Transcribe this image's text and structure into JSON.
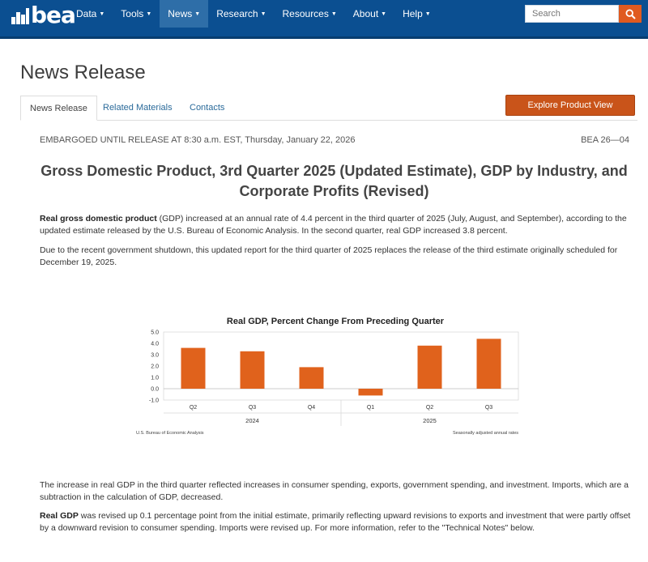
{
  "nav": {
    "logo_text": "bea",
    "items": [
      {
        "label": "Data",
        "active": false
      },
      {
        "label": "Tools",
        "active": false
      },
      {
        "label": "News",
        "active": true
      },
      {
        "label": "Research",
        "active": false
      },
      {
        "label": "Resources",
        "active": false
      },
      {
        "label": "About",
        "active": false
      },
      {
        "label": "Help",
        "active": false
      }
    ],
    "search_placeholder": "Search",
    "search_icon": "search-icon",
    "colors": {
      "bar": "#0b4f91",
      "active": "#2e6ea8",
      "search_button": "#e05a1f"
    }
  },
  "page": {
    "title": "News Release",
    "tabs": [
      "News Release",
      "Related Materials",
      "Contacts"
    ],
    "explore_button": "Explore Product View",
    "embargo": "EMBARGOED UNTIL RELEASE AT 8:30 a.m. EST, Thursday, January 22, 2026",
    "release_number": "BEA 26—04",
    "headline": "Gross Domestic Product, 3rd Quarter 2025 (Updated Estimate), GDP by Industry, and Corporate Profits (Revised)"
  },
  "paragraphs": {
    "p1_bold": "Real gross domestic product",
    "p1_rest": " (GDP) increased at an annual rate of 4.4 percent in the third quarter of 2025 (July, August, and September), according to the updated estimate released by the U.S. Bureau of Economic Analysis. In the second quarter, real GDP increased 3.8 percent.",
    "p2": "Due to the recent government shutdown, this updated report for the third quarter of 2025 replaces the release of the third estimate originally scheduled for December 19, 2025.",
    "p3": "The increase in real GDP in the third quarter reflected increases in consumer spending, exports, government spending, and investment. Imports, which are a subtraction in the calculation of GDP, decreased.",
    "p4_bold": "Real GDP",
    "p4_rest": " was revised up 0.1 percentage point from the initial estimate, primarily reflecting upward revisions to exports and investment that were partly offset by a downward revision to consumer spending. Imports were revised up. For more information, refer to the \"Technical Notes\" below."
  },
  "chart_data": {
    "type": "bar",
    "title": "Real GDP, Percent Change From Preceding Quarter",
    "categories": [
      "Q2",
      "Q3",
      "Q4",
      "Q1",
      "Q2",
      "Q3"
    ],
    "groups": [
      {
        "label": "2024",
        "count": 3
      },
      {
        "label": "2025",
        "count": 3
      }
    ],
    "values": [
      3.6,
      3.3,
      1.9,
      -0.6,
      3.8,
      4.4
    ],
    "ylim": [
      -1.0,
      5.0
    ],
    "yticks": [
      "5.0",
      "4.0",
      "3.0",
      "2.0",
      "1.0",
      "0.0",
      "-1.0"
    ],
    "ytick_values": [
      5,
      4,
      3,
      2,
      1,
      0,
      -1
    ],
    "grid": false,
    "source_note": "U.S. Bureau of Economic Analysis",
    "rate_note": "Seasonally adjusted annual rates",
    "bar_color": "#e0621c"
  }
}
